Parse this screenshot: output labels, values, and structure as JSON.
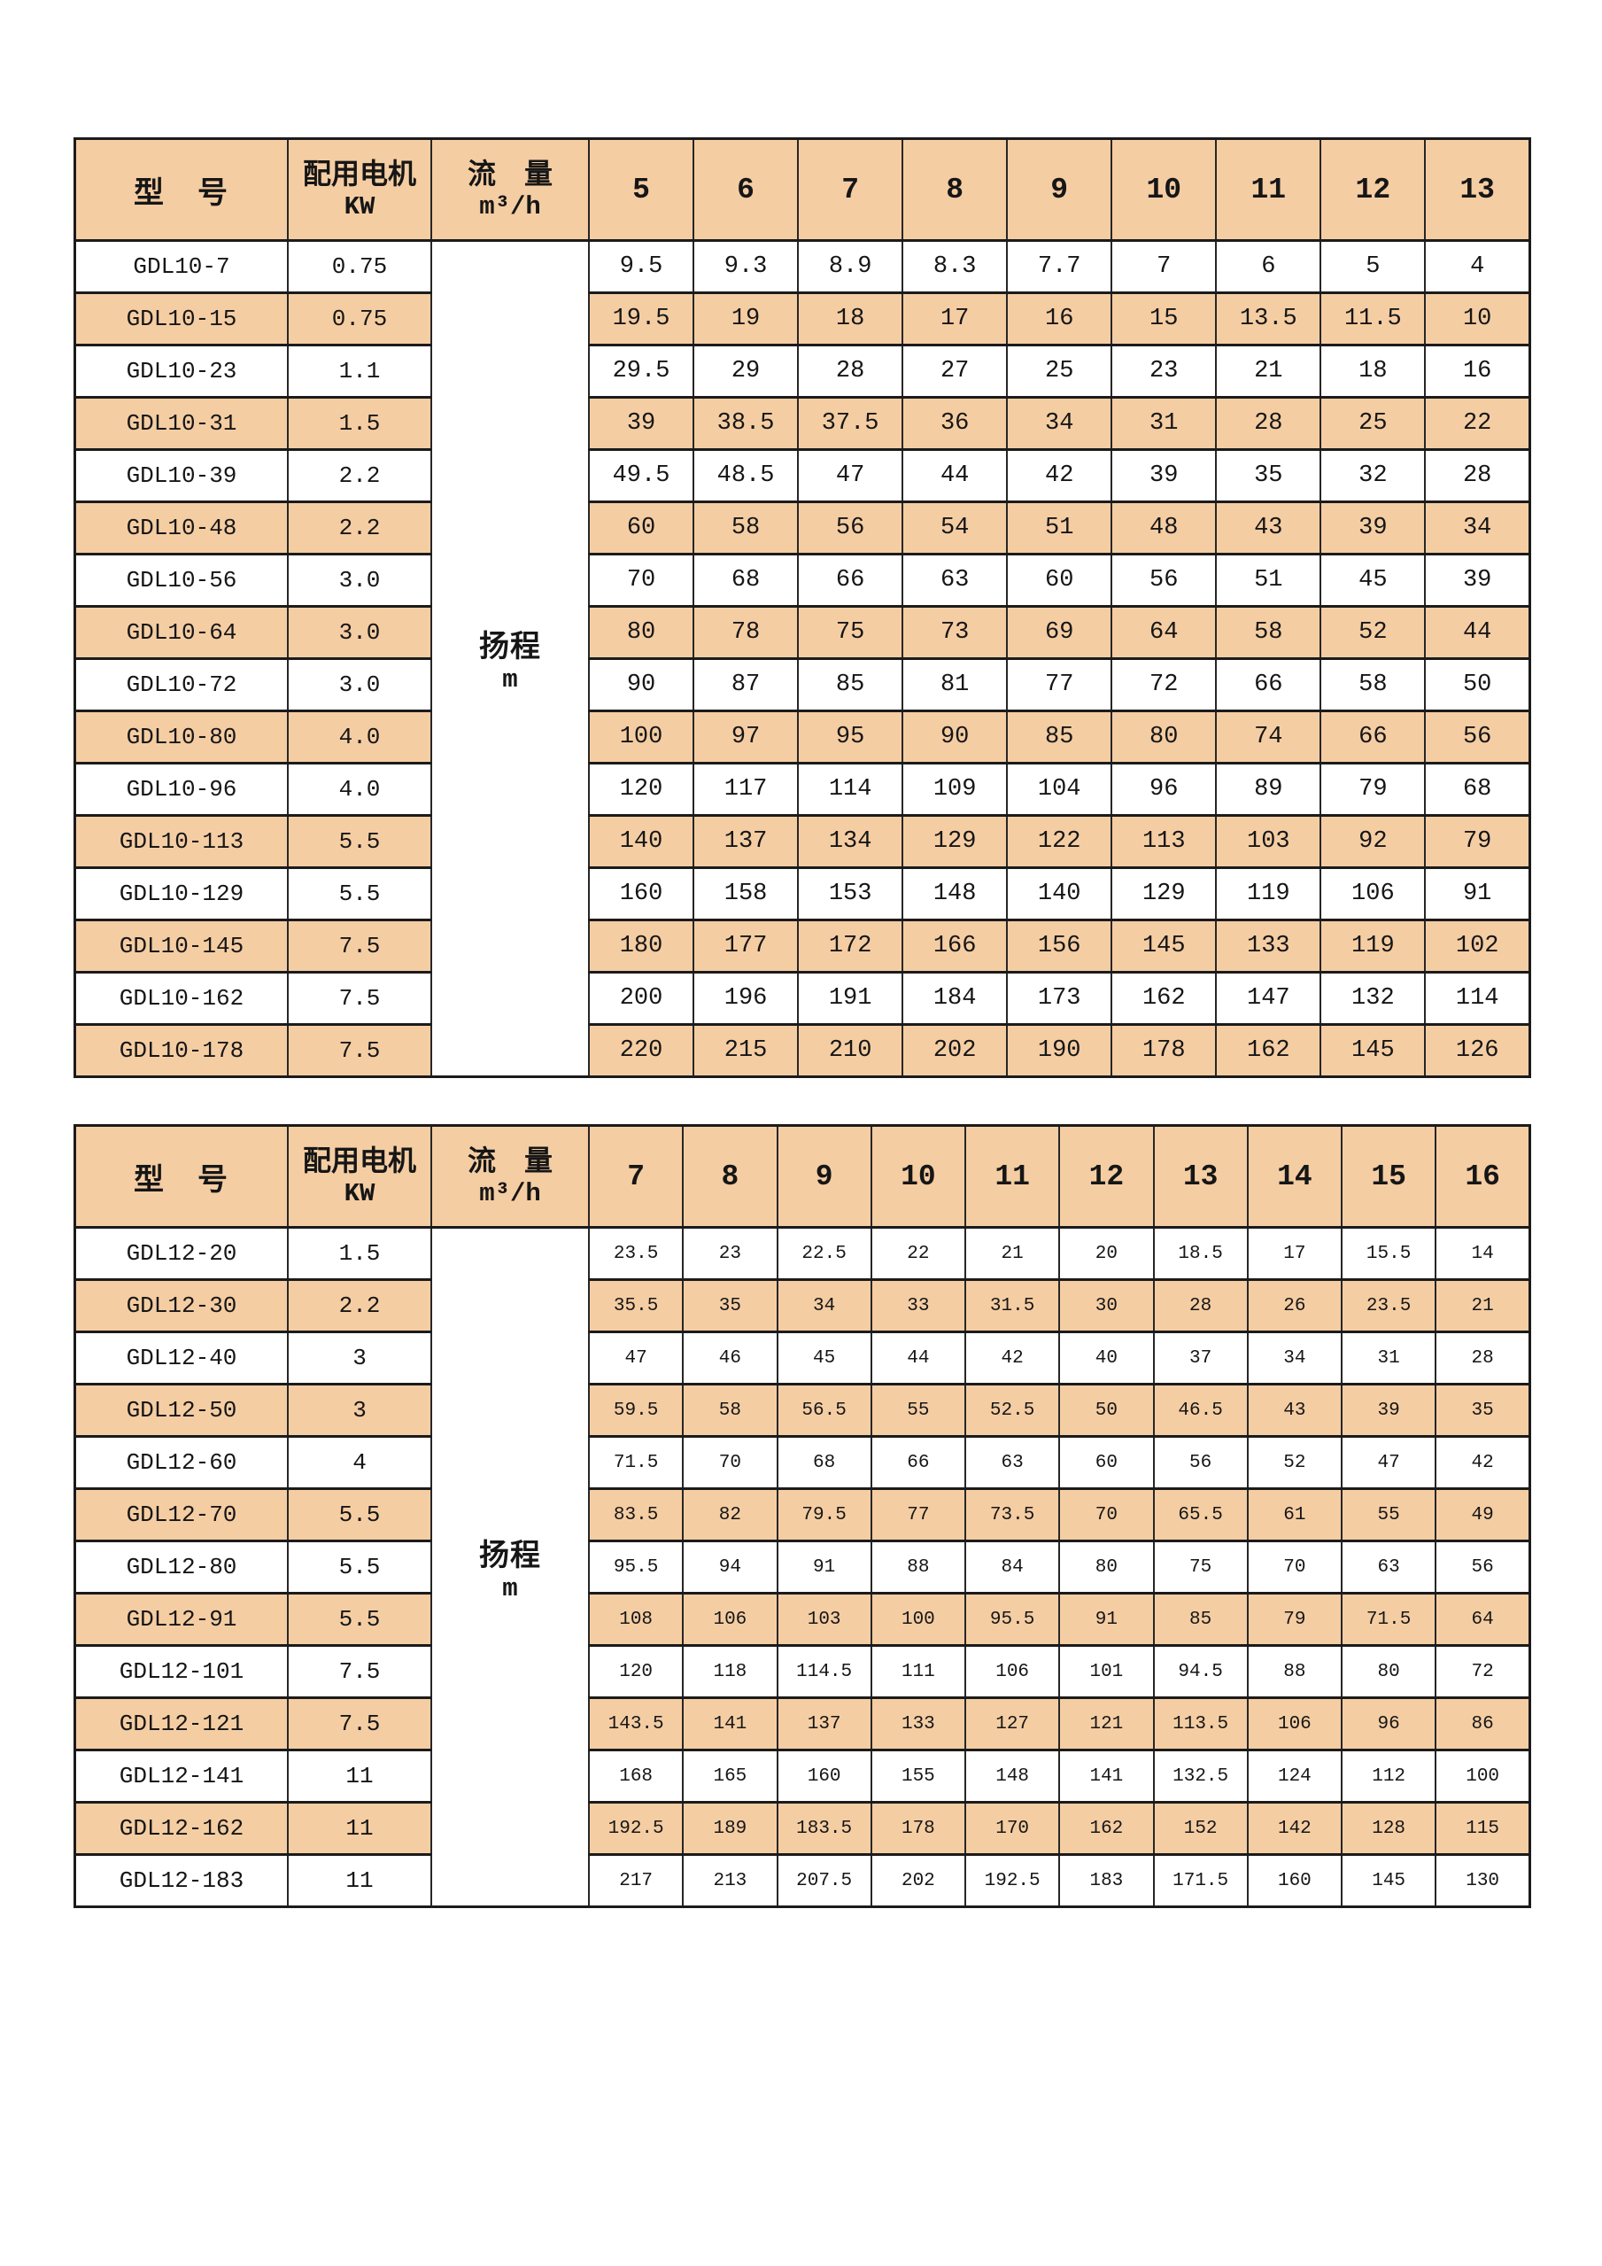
{
  "page": {
    "background": "#ffffff"
  },
  "colors": {
    "stripe": "#F5CDA3",
    "header_bg": "#F5CDA3",
    "border": "#1b1b1b",
    "text": "#161616"
  },
  "tables": [
    {
      "name": "pump-table-gdl10",
      "header": {
        "model_label": "型　号",
        "motor_label_line1": "配用电机",
        "motor_label_line2": "KW",
        "flow_label_line1": "流　量",
        "flow_label_line2": "m³/h",
        "flow_columns": [
          "5",
          "6",
          "7",
          "8",
          "9",
          "10",
          "11",
          "12",
          "13"
        ]
      },
      "body_label_line1": "扬程",
      "body_label_line2": "m",
      "rows": [
        {
          "model": "GDL10-7",
          "kw": "0.75",
          "heads": [
            "9.5",
            "9.3",
            "8.9",
            "8.3",
            "7.7",
            "7",
            "6",
            "5",
            "4"
          ]
        },
        {
          "model": "GDL10-15",
          "kw": "0.75",
          "heads": [
            "19.5",
            "19",
            "18",
            "17",
            "16",
            "15",
            "13.5",
            "11.5",
            "10"
          ]
        },
        {
          "model": "GDL10-23",
          "kw": "1.1",
          "heads": [
            "29.5",
            "29",
            "28",
            "27",
            "25",
            "23",
            "21",
            "18",
            "16"
          ]
        },
        {
          "model": "GDL10-31",
          "kw": "1.5",
          "heads": [
            "39",
            "38.5",
            "37.5",
            "36",
            "34",
            "31",
            "28",
            "25",
            "22"
          ]
        },
        {
          "model": "GDL10-39",
          "kw": "2.2",
          "heads": [
            "49.5",
            "48.5",
            "47",
            "44",
            "42",
            "39",
            "35",
            "32",
            "28"
          ]
        },
        {
          "model": "GDL10-48",
          "kw": "2.2",
          "heads": [
            "60",
            "58",
            "56",
            "54",
            "51",
            "48",
            "43",
            "39",
            "34"
          ]
        },
        {
          "model": "GDL10-56",
          "kw": "3.0",
          "heads": [
            "70",
            "68",
            "66",
            "63",
            "60",
            "56",
            "51",
            "45",
            "39"
          ]
        },
        {
          "model": "GDL10-64",
          "kw": "3.0",
          "heads": [
            "80",
            "78",
            "75",
            "73",
            "69",
            "64",
            "58",
            "52",
            "44"
          ]
        },
        {
          "model": "GDL10-72",
          "kw": "3.0",
          "heads": [
            "90",
            "87",
            "85",
            "81",
            "77",
            "72",
            "66",
            "58",
            "50"
          ]
        },
        {
          "model": "GDL10-80",
          "kw": "4.0",
          "heads": [
            "100",
            "97",
            "95",
            "90",
            "85",
            "80",
            "74",
            "66",
            "56"
          ]
        },
        {
          "model": "GDL10-96",
          "kw": "4.0",
          "heads": [
            "120",
            "117",
            "114",
            "109",
            "104",
            "96",
            "89",
            "79",
            "68"
          ]
        },
        {
          "model": "GDL10-113",
          "kw": "5.5",
          "heads": [
            "140",
            "137",
            "134",
            "129",
            "122",
            "113",
            "103",
            "92",
            "79"
          ]
        },
        {
          "model": "GDL10-129",
          "kw": "5.5",
          "heads": [
            "160",
            "158",
            "153",
            "148",
            "140",
            "129",
            "119",
            "106",
            "91"
          ]
        },
        {
          "model": "GDL10-145",
          "kw": "7.5",
          "heads": [
            "180",
            "177",
            "172",
            "166",
            "156",
            "145",
            "133",
            "119",
            "102"
          ]
        },
        {
          "model": "GDL10-162",
          "kw": "7.5",
          "heads": [
            "200",
            "196",
            "191",
            "184",
            "173",
            "162",
            "147",
            "132",
            "114"
          ]
        },
        {
          "model": "GDL10-178",
          "kw": "7.5",
          "heads": [
            "220",
            "215",
            "210",
            "202",
            "190",
            "178",
            "162",
            "145",
            "126"
          ]
        }
      ]
    },
    {
      "name": "pump-table-gdl12",
      "header": {
        "model_label": "型　号",
        "motor_label_line1": "配用电机",
        "motor_label_line2": "KW",
        "flow_label_line1": "流　量",
        "flow_label_line2": "m³/h",
        "flow_columns": [
          "7",
          "8",
          "9",
          "10",
          "11",
          "12",
          "13",
          "14",
          "15",
          "16"
        ]
      },
      "body_label_line1": "扬程",
      "body_label_line2": "m",
      "rows": [
        {
          "model": "GDL12-20",
          "kw": "1.5",
          "heads": [
            "23.5",
            "23",
            "22.5",
            "22",
            "21",
            "20",
            "18.5",
            "17",
            "15.5",
            "14"
          ]
        },
        {
          "model": "GDL12-30",
          "kw": "2.2",
          "heads": [
            "35.5",
            "35",
            "34",
            "33",
            "31.5",
            "30",
            "28",
            "26",
            "23.5",
            "21"
          ]
        },
        {
          "model": "GDL12-40",
          "kw": "3",
          "heads": [
            "47",
            "46",
            "45",
            "44",
            "42",
            "40",
            "37",
            "34",
            "31",
            "28"
          ]
        },
        {
          "model": "GDL12-50",
          "kw": "3",
          "heads": [
            "59.5",
            "58",
            "56.5",
            "55",
            "52.5",
            "50",
            "46.5",
            "43",
            "39",
            "35"
          ]
        },
        {
          "model": "GDL12-60",
          "kw": "4",
          "heads": [
            "71.5",
            "70",
            "68",
            "66",
            "63",
            "60",
            "56",
            "52",
            "47",
            "42"
          ]
        },
        {
          "model": "GDL12-70",
          "kw": "5.5",
          "heads": [
            "83.5",
            "82",
            "79.5",
            "77",
            "73.5",
            "70",
            "65.5",
            "61",
            "55",
            "49"
          ]
        },
        {
          "model": "GDL12-80",
          "kw": "5.5",
          "heads": [
            "95.5",
            "94",
            "91",
            "88",
            "84",
            "80",
            "75",
            "70",
            "63",
            "56"
          ]
        },
        {
          "model": "GDL12-91",
          "kw": "5.5",
          "heads": [
            "108",
            "106",
            "103",
            "100",
            "95.5",
            "91",
            "85",
            "79",
            "71.5",
            "64"
          ]
        },
        {
          "model": "GDL12-101",
          "kw": "7.5",
          "heads": [
            "120",
            "118",
            "114.5",
            "111",
            "106",
            "101",
            "94.5",
            "88",
            "80",
            "72"
          ]
        },
        {
          "model": "GDL12-121",
          "kw": "7.5",
          "heads": [
            "143.5",
            "141",
            "137",
            "133",
            "127",
            "121",
            "113.5",
            "106",
            "96",
            "86"
          ]
        },
        {
          "model": "GDL12-141",
          "kw": "11",
          "heads": [
            "168",
            "165",
            "160",
            "155",
            "148",
            "141",
            "132.5",
            "124",
            "112",
            "100"
          ]
        },
        {
          "model": "GDL12-162",
          "kw": "11",
          "heads": [
            "192.5",
            "189",
            "183.5",
            "178",
            "170",
            "162",
            "152",
            "142",
            "128",
            "115"
          ]
        },
        {
          "model": "GDL12-183",
          "kw": "11",
          "heads": [
            "217",
            "213",
            "207.5",
            "202",
            "192.5",
            "183",
            "171.5",
            "160",
            "145",
            "130"
          ]
        }
      ]
    }
  ]
}
